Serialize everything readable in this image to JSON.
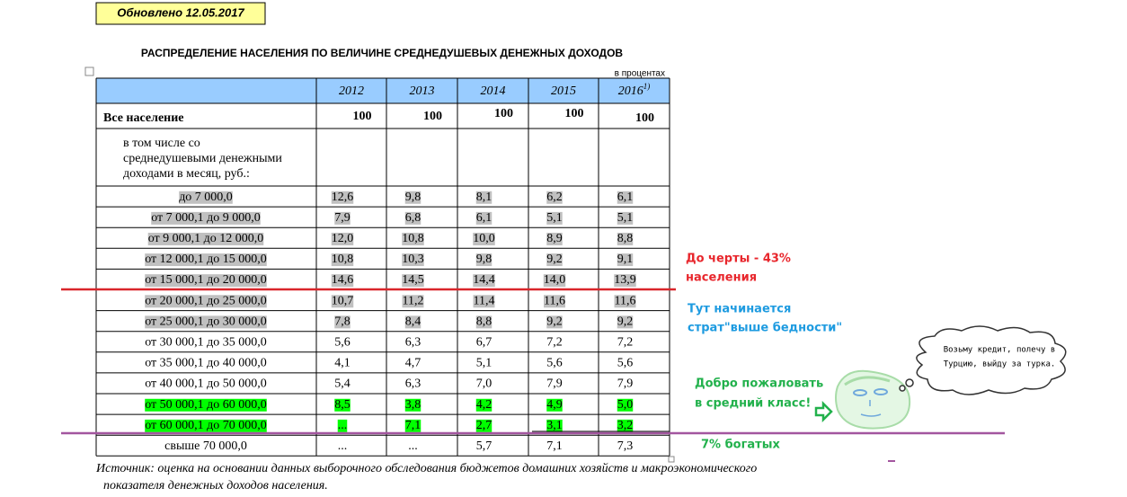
{
  "update_note": "Обновлено 12.05.2017",
  "title": "РАСПРЕДЕЛЕНИЕ НАСЕЛЕНИЯ ПО ВЕЛИЧИНЕ СРЕДНЕДУШЕВЫХ ДЕНЕЖНЫХ ДОХОДОВ",
  "units": "в процентах",
  "table": {
    "header_color": "#99ccff",
    "years": [
      "2012",
      "2013",
      "2014",
      "2015",
      "2016"
    ],
    "footnote_mark": "1)",
    "total": {
      "label": "Все население",
      "values": [
        "100",
        "100",
        "100",
        "100",
        "100"
      ]
    },
    "subheader": [
      "в том числе со",
      "среднедушевыми денежными",
      "доходами в месяц, руб.:"
    ],
    "rows": [
      {
        "label": "до 7 000,0",
        "values": [
          "12,6",
          "9,8",
          "8,1",
          "6,2",
          "6,1"
        ],
        "highlight": "#c0c0c0"
      },
      {
        "label": "от 7 000,1 до 9 000,0",
        "values": [
          "7,9",
          "6,8",
          "6,1",
          "5,1",
          "5,1"
        ],
        "highlight": "#c0c0c0"
      },
      {
        "label": "от 9 000,1 до 12 000,0",
        "values": [
          "12,0",
          "10,8",
          "10,0",
          "8,9",
          "8,8"
        ],
        "highlight": "#c0c0c0"
      },
      {
        "label": "от 12 000,1 до 15 000,0",
        "values": [
          "10,8",
          "10,3",
          "9,8",
          "9,2",
          "9,1"
        ],
        "highlight": "#c0c0c0"
      },
      {
        "label": "от 15 000,1 до 20 000,0",
        "values": [
          "14,6",
          "14,5",
          "14,4",
          "14,0",
          "13,9"
        ],
        "highlight": "#c0c0c0"
      },
      {
        "label": "от 20 000,1 до 25 000,0",
        "values": [
          "10,7",
          "11,2",
          "11,4",
          "11,6",
          "11,6"
        ],
        "highlight": "#c0c0c0"
      },
      {
        "label": "от 25 000,1 до 30 000,0",
        "values": [
          "7,8",
          "8,4",
          "8,8",
          "9,2",
          "9,2"
        ],
        "highlight": "#c0c0c0"
      },
      {
        "label": "от 30 000,1 до 35 000,0",
        "values": [
          "5,6",
          "6,3",
          "6,7",
          "7,2",
          "7,2"
        ]
      },
      {
        "label": "от 35 000,1 до 40 000,0",
        "values": [
          "4,1",
          "4,7",
          "5,1",
          "5,6",
          "5,6"
        ]
      },
      {
        "label": "от 40 000,1 до 50 000,0",
        "values": [
          "5,4",
          "6,3",
          "7,0",
          "7,9",
          "7,9"
        ]
      },
      {
        "label": "от 50 000,1 до 60 000,0",
        "values": [
          "8,5",
          "3,8",
          "4,2",
          "4,9",
          "5,0"
        ],
        "highlight": "#00ff00"
      },
      {
        "label": "от 60 000,1 до 70 000,0",
        "values": [
          "...",
          "7,1",
          "2,7",
          "3,1",
          "3,2"
        ],
        "highlight": "#00ff00"
      },
      {
        "label": "свыше 70 000,0",
        "values": [
          "...",
          "...",
          "5,7",
          "7,1",
          "7,3"
        ]
      }
    ]
  },
  "source": [
    "Источник: оценка на основании данных  выборочного обследования бюджетов домашних хозяйств  и макроэкономического",
    "показателя денежных доходов населения."
  ],
  "annotations": {
    "poverty": [
      "До черты - 43%",
      "населения"
    ],
    "stratum": [
      "Тут начинается",
      "страт\"выше бедности\""
    ],
    "middle": [
      "Добро пожаловать",
      "в средний класс!"
    ],
    "rich": "7% богатых",
    "thought": [
      "Возьму кредит, полечу в",
      "Турцию, выйду за турка."
    ]
  }
}
